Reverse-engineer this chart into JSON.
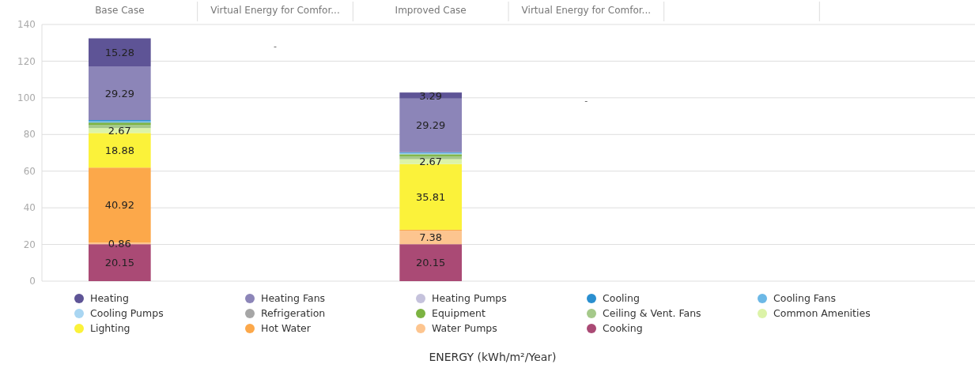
{
  "chart_data": {
    "type": "bar",
    "stacked": true,
    "annotations": [
      "ENERGY (kWh/m²/Year)"
    ],
    "categories": [
      "Base Case",
      "Virtual Energy for Comfor...",
      "Improved Case",
      "Virtual Energy for Comfor...",
      null,
      null
    ],
    "ylim": [
      0,
      140
    ],
    "yticks": [
      0,
      20,
      40,
      60,
      80,
      100,
      120,
      140
    ],
    "grid": "y",
    "legend": "bottom",
    "totals": [
      null,
      "-",
      null,
      "-",
      null,
      null
    ],
    "series": [
      {
        "name": "Cooking",
        "color": "#aa4a75",
        "values": [
          20.15,
          null,
          20.15,
          null,
          null,
          null
        ],
        "value_labels": [
          "20.15",
          null,
          "20.15",
          null,
          null,
          null
        ]
      },
      {
        "name": "Water Pumps",
        "color": "#fdc58f",
        "values": [
          0.86,
          null,
          7.38,
          null,
          null,
          null
        ],
        "value_labels": [
          "0.86",
          null,
          "7.38",
          null,
          null,
          null
        ]
      },
      {
        "name": "Hot Water",
        "color": "#fca84a",
        "values": [
          40.92,
          null,
          0.5,
          null,
          null,
          null
        ],
        "value_labels": [
          "40.92",
          null,
          null,
          null,
          null,
          null
        ]
      },
      {
        "name": "Lighting",
        "color": "#fbf23a",
        "values": [
          18.88,
          null,
          35.81,
          null,
          null,
          null
        ],
        "value_labels": [
          "18.88",
          null,
          "35.81",
          null,
          null,
          null
        ]
      },
      {
        "name": "Common Amenities",
        "color": "#dcf3a8",
        "values": [
          2.67,
          null,
          2.67,
          null,
          null,
          null
        ],
        "value_labels": [
          "2.67",
          null,
          "2.67",
          null,
          null,
          null
        ]
      },
      {
        "name": "Ceiling & Vent. Fans",
        "color": "#a5c98a",
        "values": [
          1.8,
          null,
          1.6,
          null,
          null,
          null
        ]
      },
      {
        "name": "Equipment",
        "color": "#7cb342",
        "values": [
          1.2,
          null,
          1.1,
          null,
          null,
          null
        ]
      },
      {
        "name": "Refrigeration",
        "color": "#a6a6a6",
        "values": [
          null,
          null,
          null,
          null,
          null,
          null
        ]
      },
      {
        "name": "Cooling Pumps",
        "color": "#a9d6f2",
        "values": [
          null,
          null,
          0.3,
          null,
          null,
          null
        ]
      },
      {
        "name": "Cooling Fans",
        "color": "#6cb8e6",
        "values": [
          0.8,
          null,
          0.4,
          null,
          null,
          null
        ]
      },
      {
        "name": "Cooling",
        "color": "#2a8fd0",
        "values": [
          0.6,
          null,
          0.4,
          null,
          null,
          null
        ]
      },
      {
        "name": "Heating Pumps",
        "color": "#c5c2dc",
        "values": [
          0,
          null,
          0,
          null,
          null,
          null
        ]
      },
      {
        "name": "Heating Fans",
        "color": "#8c85b8",
        "values": [
          29.29,
          null,
          29.29,
          null,
          null,
          null
        ],
        "value_labels": [
          "29.29",
          null,
          "29.29",
          null,
          null,
          null
        ]
      },
      {
        "name": "Heating",
        "color": "#5e5496",
        "values": [
          15.28,
          null,
          3.29,
          null,
          null,
          null
        ],
        "value_labels": [
          "15.28",
          null,
          "3.29",
          null,
          null,
          null
        ]
      }
    ]
  }
}
